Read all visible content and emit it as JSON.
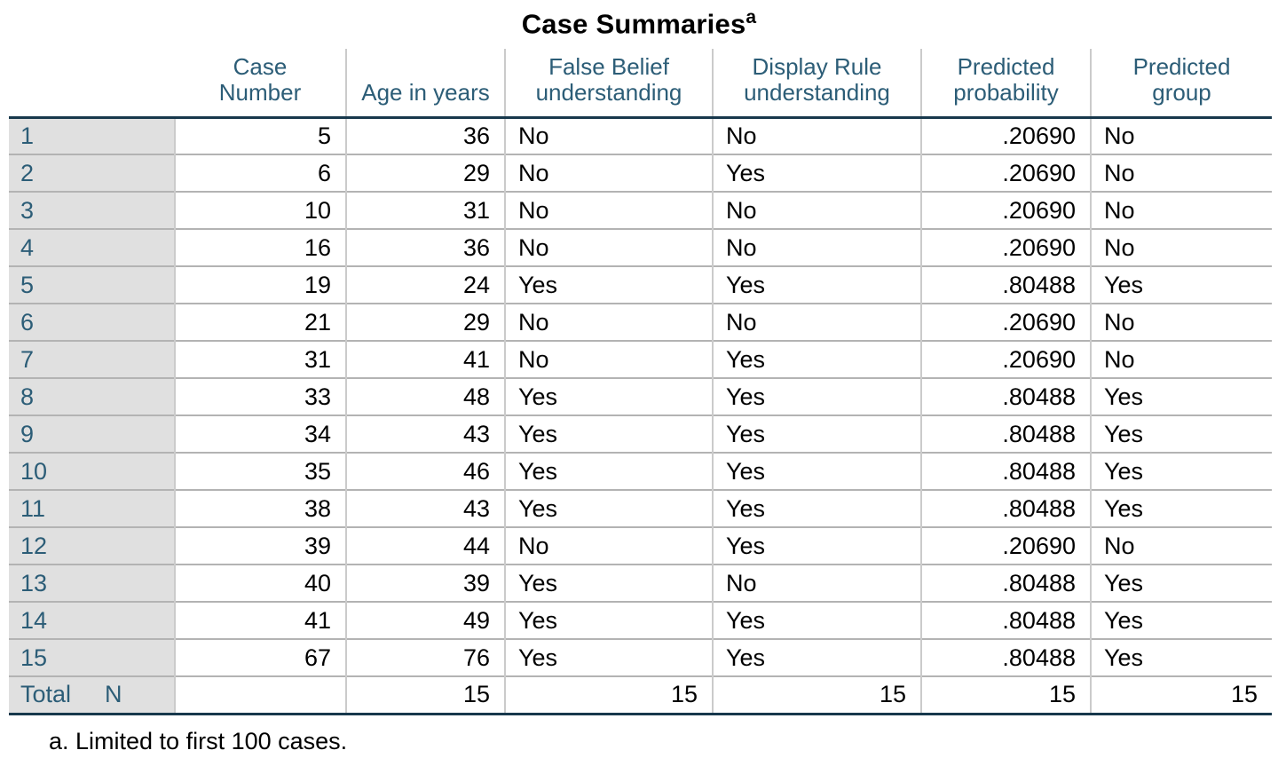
{
  "title": {
    "text": "Case Summaries",
    "footnote_marker": "a"
  },
  "colors": {
    "header-text": "#2c5d77",
    "label-text": "#2c5d77",
    "heavy-border": "#17384c",
    "label-bg": "#e0e0e0",
    "row-divider": "#b3b3b3",
    "col-divider": "#cbcbcb"
  },
  "table": {
    "headers": {
      "corner": "",
      "case_number": "Case\nNumber",
      "age": "Age in years",
      "false_belief": "False Belief\nunderstanding",
      "display_rule": "Display Rule\nunderstanding",
      "predicted_probability": "Predicted\nprobability",
      "predicted_group": "Predicted\ngroup"
    },
    "rows": [
      {
        "label": "1",
        "case": "5",
        "age": "36",
        "fb": "No",
        "dr": "No",
        "prob": ".20690",
        "group": "No"
      },
      {
        "label": "2",
        "case": "6",
        "age": "29",
        "fb": "No",
        "dr": "Yes",
        "prob": ".20690",
        "group": "No"
      },
      {
        "label": "3",
        "case": "10",
        "age": "31",
        "fb": "No",
        "dr": "No",
        "prob": ".20690",
        "group": "No"
      },
      {
        "label": "4",
        "case": "16",
        "age": "36",
        "fb": "No",
        "dr": "No",
        "prob": ".20690",
        "group": "No"
      },
      {
        "label": "5",
        "case": "19",
        "age": "24",
        "fb": "Yes",
        "dr": "Yes",
        "prob": ".80488",
        "group": "Yes"
      },
      {
        "label": "6",
        "case": "21",
        "age": "29",
        "fb": "No",
        "dr": "No",
        "prob": ".20690",
        "group": "No"
      },
      {
        "label": "7",
        "case": "31",
        "age": "41",
        "fb": "No",
        "dr": "Yes",
        "prob": ".20690",
        "group": "No"
      },
      {
        "label": "8",
        "case": "33",
        "age": "48",
        "fb": "Yes",
        "dr": "Yes",
        "prob": ".80488",
        "group": "Yes"
      },
      {
        "label": "9",
        "case": "34",
        "age": "43",
        "fb": "Yes",
        "dr": "Yes",
        "prob": ".80488",
        "group": "Yes"
      },
      {
        "label": "10",
        "case": "35",
        "age": "46",
        "fb": "Yes",
        "dr": "Yes",
        "prob": ".80488",
        "group": "Yes"
      },
      {
        "label": "11",
        "case": "38",
        "age": "43",
        "fb": "Yes",
        "dr": "Yes",
        "prob": ".80488",
        "group": "Yes"
      },
      {
        "label": "12",
        "case": "39",
        "age": "44",
        "fb": "No",
        "dr": "Yes",
        "prob": ".20690",
        "group": "No"
      },
      {
        "label": "13",
        "case": "40",
        "age": "39",
        "fb": "Yes",
        "dr": "No",
        "prob": ".80488",
        "group": "Yes"
      },
      {
        "label": "14",
        "case": "41",
        "age": "49",
        "fb": "Yes",
        "dr": "Yes",
        "prob": ".80488",
        "group": "Yes"
      },
      {
        "label": "15",
        "case": "67",
        "age": "76",
        "fb": "Yes",
        "dr": "Yes",
        "prob": ".80488",
        "group": "Yes"
      }
    ],
    "total": {
      "label": "Total",
      "stat": "N",
      "case": "",
      "age": "15",
      "fb": "15",
      "dr": "15",
      "prob": "15",
      "group": "15"
    }
  },
  "footnote": "a. Limited to first 100 cases."
}
